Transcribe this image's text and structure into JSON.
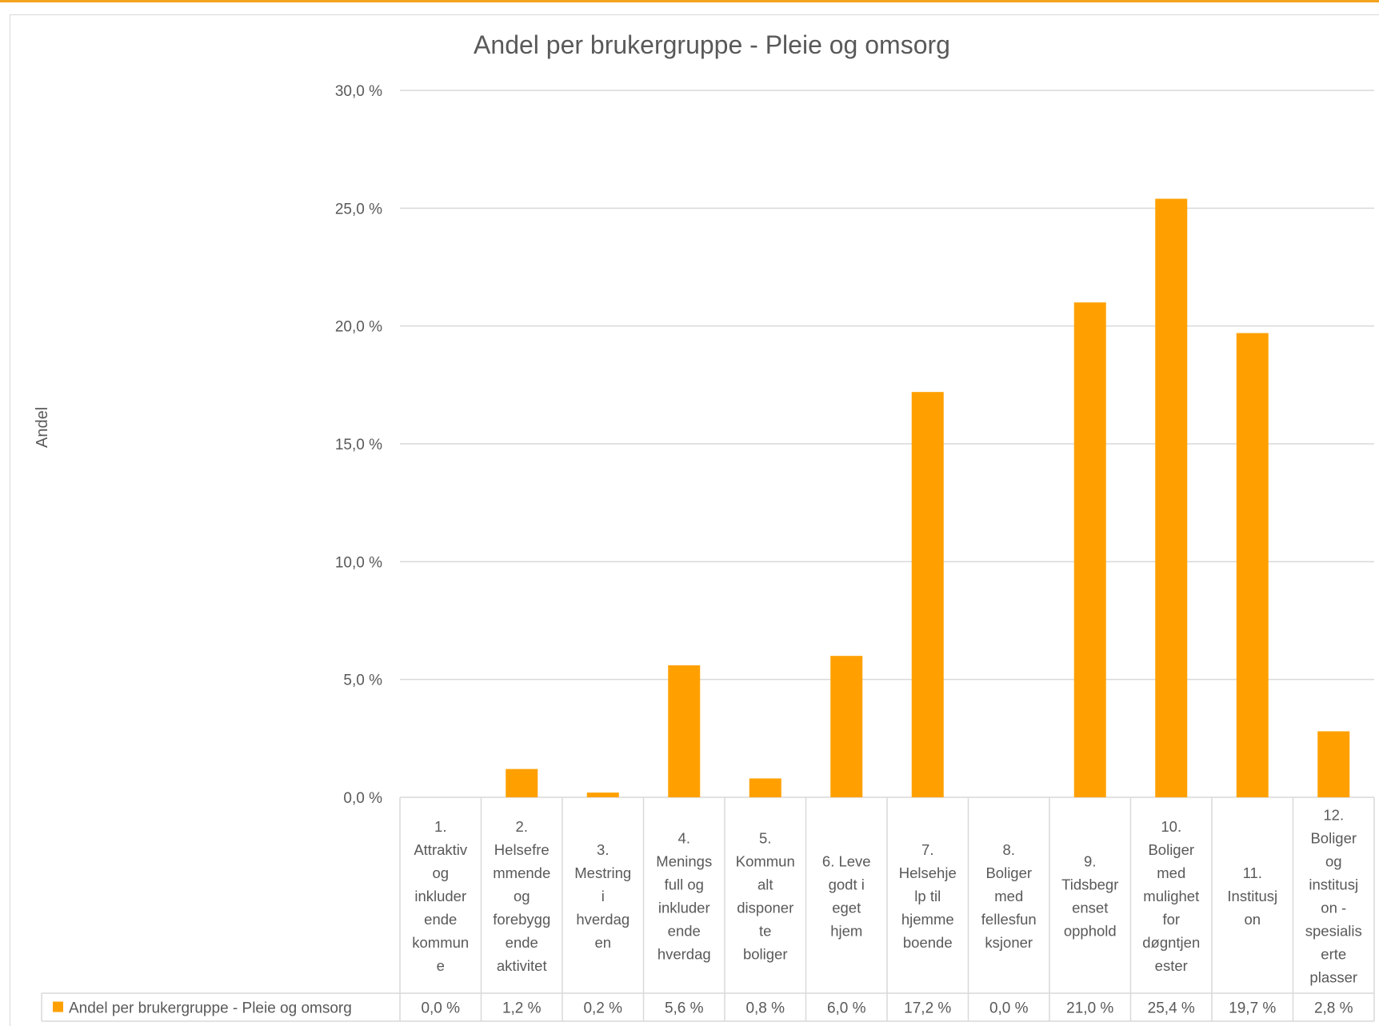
{
  "chart_data": {
    "type": "bar",
    "title": "Andel per brukergruppe - Pleie og omsorg",
    "ylabel": "Andel",
    "xlabel": "",
    "ylim": [
      0,
      30
    ],
    "yticks": [
      "0,0 %",
      "5,0 %",
      "10,0 %",
      "15,0 %",
      "20,0 %",
      "25,0 %",
      "30,0 %"
    ],
    "grid": true,
    "bar_color": "#FFA000",
    "data_table": true,
    "categories": [
      "1. Attraktiv og inkluderende kommune",
      "2. Helsefremmende og forebyggende aktivitet",
      "3. Mestring i hverdagen",
      "4. Meningsfull og inkluderende hverdag",
      "5. Kommunalt disponerte boliger",
      "6. Leve godt i eget hjem",
      "7. Helsehjelp til hjemmeboende",
      "8. Boliger med fellesfunksjoner",
      "9. Tidsbegrenset opphold",
      "10. Boliger med mulighet for døgntjenester",
      "11. Institusjon",
      "12. Boliger og institusjon - spesialiserte plasser"
    ],
    "category_lines": [
      [
        "1.",
        "Attraktiv",
        "og",
        "inkluder",
        "ende",
        "kommun",
        "e"
      ],
      [
        "2.",
        "Helsefre",
        "mmende",
        "og",
        "forebygg",
        "ende",
        "aktivitet"
      ],
      [
        "3.",
        "Mestring",
        "i",
        "hverdag",
        "en"
      ],
      [
        "4.",
        "Menings",
        "full og",
        "inkluder",
        "ende",
        "hverdag"
      ],
      [
        "5.",
        "Kommun",
        "alt",
        "disponer",
        "te",
        "boliger"
      ],
      [
        "6. Leve",
        "godt i",
        "eget",
        "hjem"
      ],
      [
        "7.",
        "Helsehje",
        "lp til",
        "hjemme",
        "boende"
      ],
      [
        "8.",
        "Boliger",
        "med",
        "fellesfun",
        "ksjoner"
      ],
      [
        "9.",
        "Tidsbegr",
        "enset",
        "opphold"
      ],
      [
        "10.",
        "Boliger",
        "med",
        "mulighet",
        "for",
        "døgntjen",
        "ester"
      ],
      [
        "11.",
        "Institusj",
        "on"
      ],
      [
        "12.",
        "Boliger",
        "og",
        "institusj",
        "on -",
        "spesialis",
        "erte",
        "plasser"
      ]
    ],
    "series": [
      {
        "name": "Andel per brukergruppe - Pleie og omsorg",
        "values": [
          0.0,
          1.2,
          0.2,
          5.6,
          0.8,
          6.0,
          17.2,
          0.0,
          21.0,
          25.4,
          19.7,
          2.8
        ],
        "labels": [
          "0,0 %",
          "1,2 %",
          "0,2 %",
          "5,6 %",
          "0,8 %",
          "6,0 %",
          "17,2 %",
          "0,0 %",
          "21,0 %",
          "25,4 %",
          "19,7 %",
          "2,8 %"
        ]
      }
    ]
  }
}
